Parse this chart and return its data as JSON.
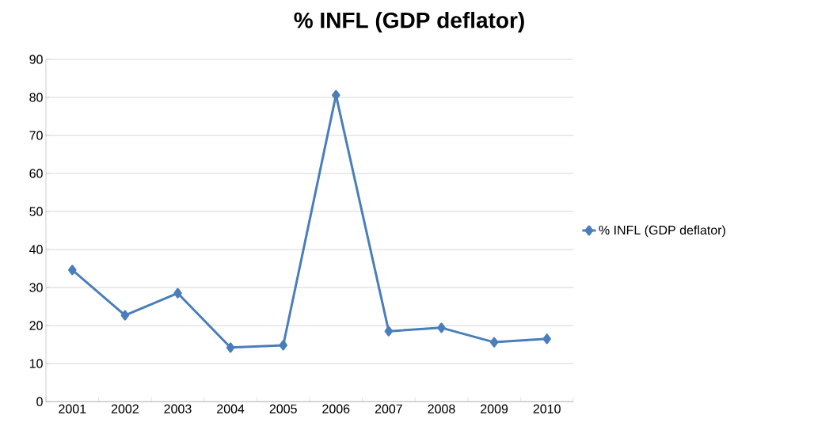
{
  "chart_data": {
    "type": "line",
    "title": "% INFL (GDP deflator)",
    "categories": [
      "2001",
      "2002",
      "2003",
      "2004",
      "2005",
      "2006",
      "2007",
      "2008",
      "2009",
      "2010"
    ],
    "series": [
      {
        "name": "% INFL (GDP deflator)",
        "color": "#4a7ebb",
        "values": [
          34.6,
          22.7,
          28.5,
          14.2,
          14.8,
          80.6,
          18.5,
          19.4,
          15.6,
          16.5
        ]
      }
    ],
    "ylim": [
      0,
      90
    ],
    "yticks": [
      0,
      10,
      20,
      30,
      40,
      50,
      60,
      70,
      80,
      90
    ],
    "grid": "y",
    "legend": "right",
    "marker": "diamond",
    "line_style": "solid"
  }
}
